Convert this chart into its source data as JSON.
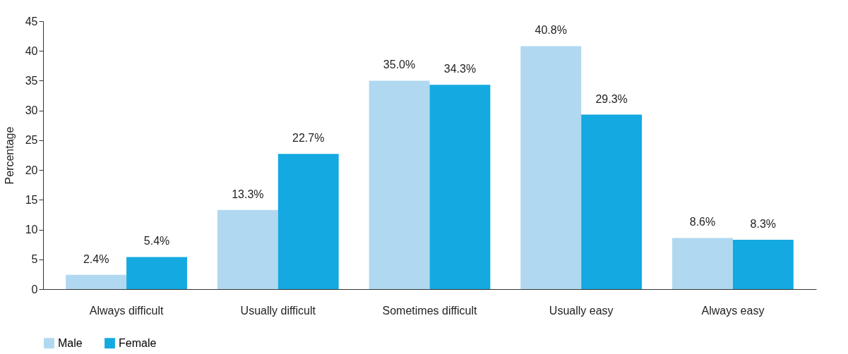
{
  "chart_data": {
    "type": "bar",
    "ylabel": "Percentage",
    "categories": [
      "Always difficult",
      "Usually difficult",
      "Sometimes difficult",
      "Usually easy",
      "Always easy"
    ],
    "series": [
      {
        "name": "Male",
        "color": "#b0d8f1",
        "values": [
          2.4,
          13.3,
          35.0,
          40.8,
          8.6
        ],
        "value_labels": [
          "2.4%",
          "13.3%",
          "35.0%",
          "40.8%",
          "8.6%"
        ]
      },
      {
        "name": "Female",
        "color": "#14a9e1",
        "values": [
          5.4,
          22.7,
          34.3,
          29.3,
          8.3
        ],
        "value_labels": [
          "5.4%",
          "22.7%",
          "34.3%",
          "29.3%",
          "8.3%"
        ]
      }
    ],
    "ylim": [
      0,
      45
    ],
    "yticks": [
      0,
      5,
      10,
      15,
      20,
      25,
      30,
      35,
      40,
      45
    ],
    "grid": false,
    "legend": "bottom"
  }
}
